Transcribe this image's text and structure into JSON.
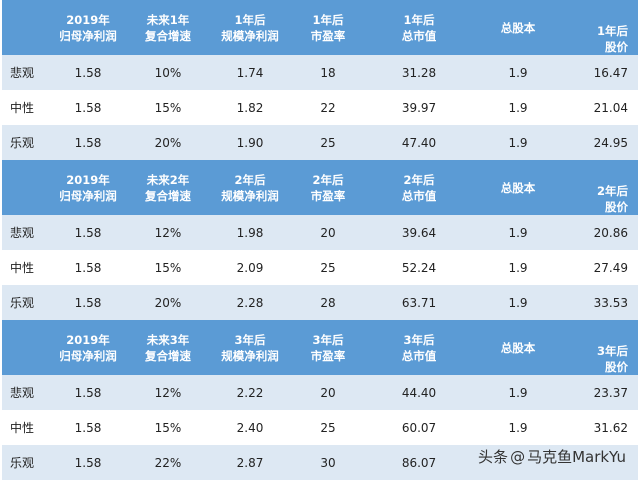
{
  "sections": [
    {
      "header": [
        [
          "",
          ""
        ],
        [
          "2019年",
          "归母净利润"
        ],
        [
          "未来1年",
          "复合增速"
        ],
        [
          "1年后",
          "规模净利润"
        ],
        [
          "1年后",
          "市盈率"
        ],
        [
          "1年后",
          "总市值"
        ],
        [
          "总股本",
          ""
        ],
        [
          "1年后",
          "股价"
        ]
      ],
      "rows": [
        [
          "悲观",
          "1.58",
          "10%",
          "1.74",
          "18",
          "31.28",
          "1.9",
          "16.47"
        ],
        [
          "中性",
          "1.58",
          "15%",
          "1.82",
          "22",
          "39.97",
          "1.9",
          "21.04"
        ],
        [
          "乐观",
          "1.58",
          "20%",
          "1.90",
          "25",
          "47.40",
          "1.9",
          "24.95"
        ]
      ]
    },
    {
      "header": [
        [
          "",
          ""
        ],
        [
          "2019年",
          "归母净利润"
        ],
        [
          "未来2年",
          "复合增速"
        ],
        [
          "2年后",
          "规模净利润"
        ],
        [
          "2年后",
          "市盈率"
        ],
        [
          "2年后",
          "总市值"
        ],
        [
          "总股本",
          ""
        ],
        [
          "2年后",
          "股价"
        ]
      ],
      "rows": [
        [
          "悲观",
          "1.58",
          "12%",
          "1.98",
          "20",
          "39.64",
          "1.9",
          "20.86"
        ],
        [
          "中性",
          "1.58",
          "15%",
          "2.09",
          "25",
          "52.24",
          "1.9",
          "27.49"
        ],
        [
          "乐观",
          "1.58",
          "20%",
          "2.28",
          "28",
          "63.71",
          "1.9",
          "33.53"
        ]
      ]
    },
    {
      "header": [
        [
          "",
          ""
        ],
        [
          "2019年",
          "归母净利润"
        ],
        [
          "未来3年",
          "复合增速"
        ],
        [
          "3年后",
          "规模净利润"
        ],
        [
          "3年后",
          "市盈率"
        ],
        [
          "3年后",
          "总市值"
        ],
        [
          "总股本",
          ""
        ],
        [
          "3年后",
          "股价"
        ]
      ],
      "rows": [
        [
          "悲观",
          "1.58",
          "12%",
          "2.22",
          "20",
          "44.40",
          "1.9",
          "23.37"
        ],
        [
          "中性",
          "1.58",
          "15%",
          "2.40",
          "25",
          "60.07",
          "1.9",
          "31.62"
        ],
        [
          "乐观",
          "1.58",
          "22%",
          "2.87",
          "30",
          "86.07",
          "",
          ""
        ]
      ]
    }
  ],
  "watermark": {
    "prefix": "头条",
    "at": "@",
    "author": "马克鱼MarkYu"
  },
  "colors": {
    "header_bg": "#5b9bd5",
    "stripe_bg": "#dde8f3"
  }
}
